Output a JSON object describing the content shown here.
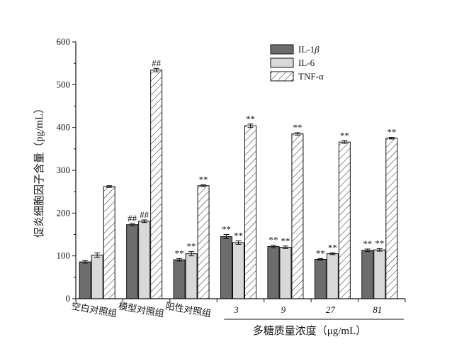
{
  "chart_data": {
    "type": "bar",
    "ylabel": "促炎细胞因子含量（pg/mL）",
    "group_axis_label": "多糖质量浓度（μg/mL）",
    "ylim": [
      0,
      600
    ],
    "yticks": [
      0,
      100,
      200,
      300,
      400,
      500,
      600
    ],
    "categories": [
      "空白对照组",
      "模型对照组",
      "阳性对照组",
      "3",
      "9",
      "27",
      "81"
    ],
    "bracketed_categories": [
      "3",
      "9",
      "27",
      "81"
    ],
    "series": [
      {
        "name": "IL-1β",
        "name_base": "IL-1",
        "name_italic": "β",
        "pattern": "solid-dark",
        "values": [
          86,
          173,
          91,
          145,
          122,
          92,
          113
        ],
        "errors": [
          3,
          3,
          3,
          5,
          3,
          2,
          3
        ],
        "annotations": [
          "",
          "##",
          "**",
          "**",
          "**",
          "**",
          "**"
        ]
      },
      {
        "name": "IL-6",
        "pattern": "solid-light",
        "values": [
          102,
          181,
          105,
          131,
          120,
          105,
          114
        ],
        "errors": [
          5,
          3,
          5,
          4,
          3,
          2,
          3
        ],
        "annotations": [
          "",
          "##",
          "**",
          "**",
          "**",
          "**",
          "**"
        ]
      },
      {
        "name": "TNF-α",
        "pattern": "hatched",
        "values": [
          262,
          534,
          264,
          404,
          385,
          366,
          375
        ],
        "errors": [
          2,
          4,
          2,
          4,
          3,
          3,
          2
        ],
        "annotations": [
          "",
          "##",
          "**",
          "**",
          "**",
          "**",
          "**"
        ]
      }
    ],
    "legend_position": "top-right",
    "grid": false,
    "colors": {
      "IL-1β": "#6d6d6d",
      "IL-6": "#d9d9d9",
      "TNF-α": "#ffffff",
      "axis": "#111111"
    }
  }
}
